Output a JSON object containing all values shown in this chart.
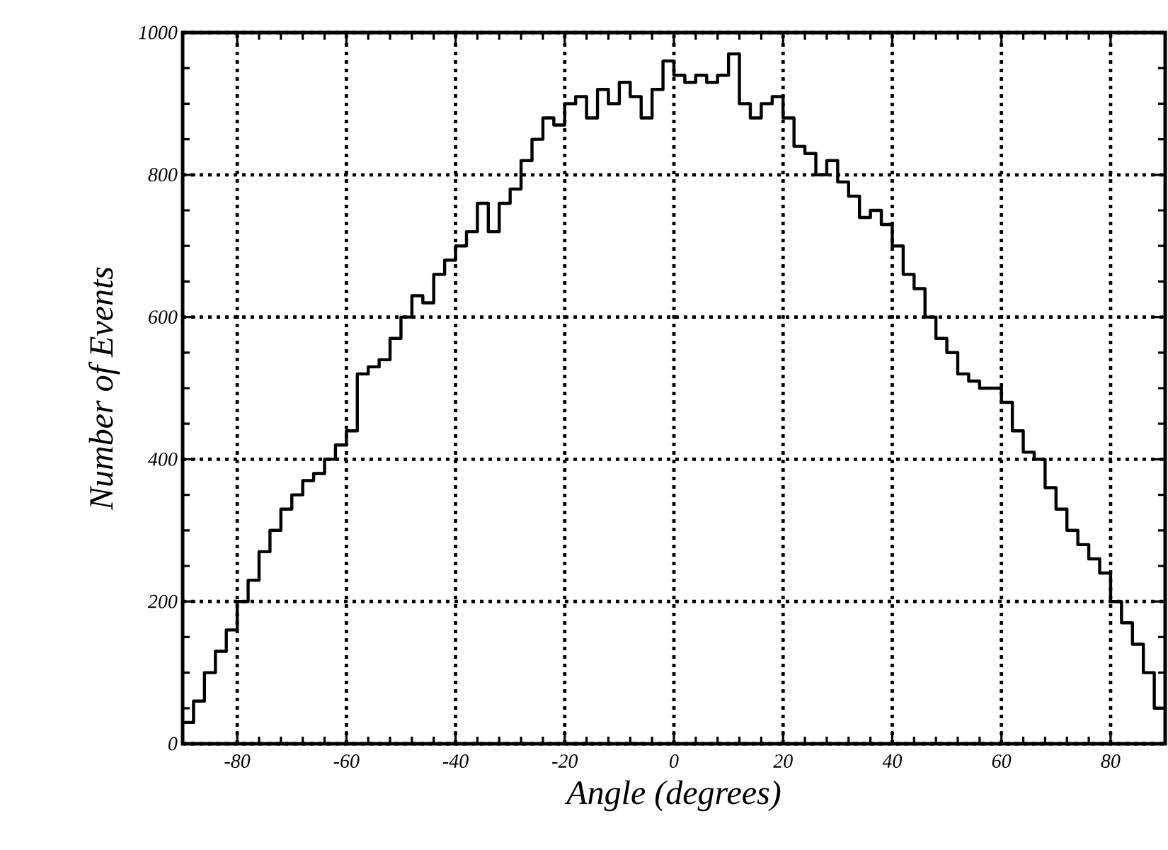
{
  "chart_data": {
    "type": "histogram",
    "xlabel": "Angle (degrees)",
    "ylabel": "Number of Events",
    "bins": [
      -90,
      -88,
      -86,
      -84,
      -82,
      -80,
      -78,
      -76,
      -74,
      -72,
      -70,
      -68,
      -66,
      -64,
      -62,
      -60,
      -58,
      -56,
      -54,
      -52,
      -50,
      -48,
      -46,
      -44,
      -42,
      -40,
      -38,
      -36,
      -34,
      -32,
      -30,
      -28,
      -26,
      -24,
      -22,
      -20,
      -18,
      -16,
      -14,
      -12,
      -10,
      -8,
      -6,
      -4,
      -2,
      0,
      2,
      4,
      6,
      8,
      10,
      12,
      14,
      16,
      18,
      20,
      22,
      24,
      26,
      28,
      30,
      32,
      34,
      36,
      38,
      40,
      42,
      44,
      46,
      48,
      50,
      52,
      54,
      56,
      58,
      60,
      62,
      64,
      66,
      68,
      70,
      72,
      74,
      76,
      78,
      80,
      82,
      84,
      86,
      88,
      90
    ],
    "values": [
      30,
      60,
      100,
      130,
      160,
      200,
      230,
      270,
      300,
      330,
      350,
      370,
      380,
      400,
      420,
      440,
      520,
      530,
      540,
      570,
      600,
      630,
      620,
      660,
      680,
      700,
      720,
      760,
      720,
      760,
      780,
      820,
      850,
      880,
      870,
      900,
      910,
      880,
      920,
      900,
      930,
      910,
      880,
      920,
      960,
      940,
      930,
      940,
      930,
      940,
      970,
      900,
      880,
      900,
      910,
      880,
      840,
      830,
      800,
      820,
      790,
      770,
      740,
      750,
      730,
      700,
      660,
      640,
      600,
      570,
      550,
      520,
      510,
      500,
      500,
      480,
      440,
      410,
      400,
      360,
      330,
      300,
      280,
      260,
      240,
      200,
      170,
      140,
      100,
      50
    ],
    "color": "#000000",
    "xlim": [
      -90,
      90
    ],
    "ylim": [
      0,
      1000
    ],
    "xticks": [
      -80,
      -60,
      -40,
      -20,
      0,
      20,
      40,
      60,
      80
    ],
    "yticks": [
      0,
      200,
      400,
      600,
      800,
      1000
    ],
    "grid": true
  }
}
